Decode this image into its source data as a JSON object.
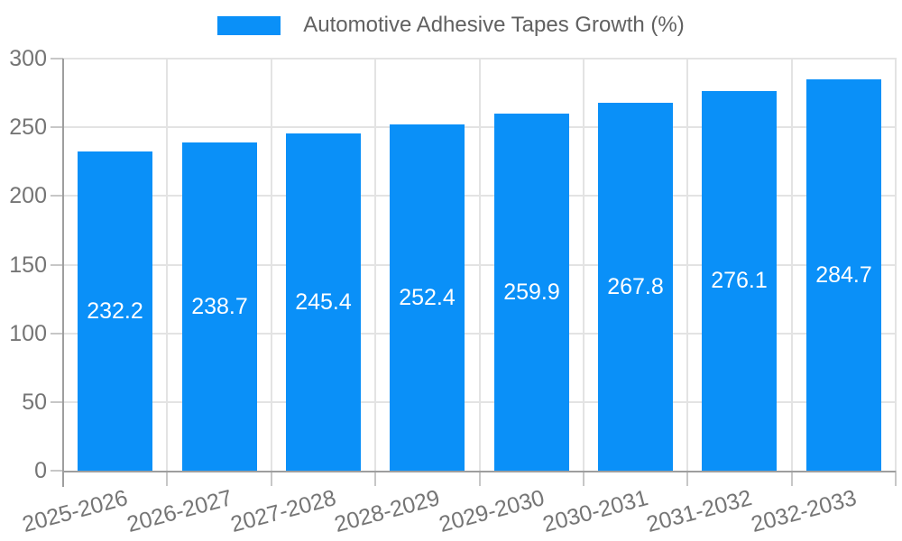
{
  "legend": {
    "label": "Automotive Adhesive Tapes Growth (%)"
  },
  "chart_data": {
    "type": "bar",
    "title": "",
    "xlabel": "",
    "ylabel": "",
    "series_name": "Automotive Adhesive Tapes Growth (%)",
    "categories": [
      "2025-2026",
      "2026-2027",
      "2027-2028",
      "2028-2029",
      "2029-2030",
      "2030-2031",
      "2031-2032",
      "2032-2033"
    ],
    "values": [
      232.2,
      238.7,
      245.4,
      252.4,
      259.9,
      267.8,
      276.1,
      284.7
    ],
    "value_labels": [
      "232.2",
      "238.7",
      "245.4",
      "252.4",
      "259.9",
      "267.8",
      "276.1",
      "284.7"
    ],
    "ylim": [
      0,
      300
    ],
    "yticks": [
      0,
      50,
      100,
      150,
      200,
      250,
      300
    ],
    "grid": true,
    "legend_position": "top",
    "x_label_rotation_deg": -15
  },
  "colors": {
    "bar": "#0a90f8",
    "value_label": "#ffffff",
    "grid": "#e3e3e3",
    "tick_mark": "#c7c7c7",
    "axis_line": "#9e9e9e",
    "tick_label": "#757575",
    "legend_text": "#616161",
    "background": "#ffffff"
  }
}
